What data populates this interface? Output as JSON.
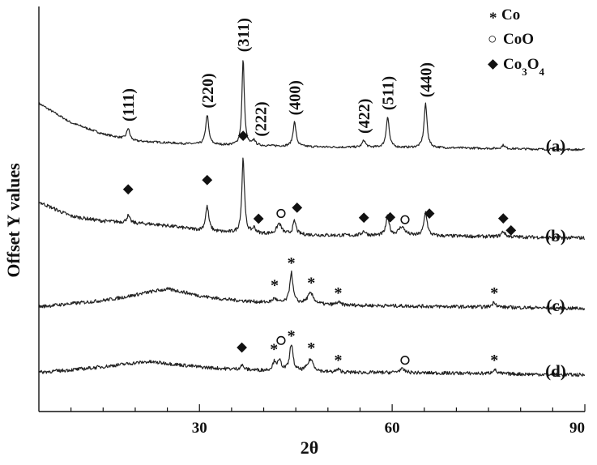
{
  "chart_data": {
    "type": "line",
    "title": "",
    "xlabel": "2θ",
    "ylabel": "Offset Y values",
    "xlim": [
      5,
      90
    ],
    "x_ticks": [
      30,
      60,
      90
    ],
    "x_tick_labels": [
      "30",
      "60",
      "90"
    ],
    "y_ticks_shown": false,
    "grid": false,
    "legend_position": "top-right",
    "legend": [
      {
        "symbol": "asterisk",
        "label": "Co",
        "marker_char": "*"
      },
      {
        "symbol": "open-circle",
        "label": "CoO",
        "marker_char": "○"
      },
      {
        "symbol": "filled-diamond",
        "label": "Co3O4",
        "formula": {
          "main": "Co",
          "sub1": "3",
          "mid": "O",
          "sub2": "4"
        }
      }
    ],
    "series": [
      {
        "name": "(a)",
        "offset": 3.0,
        "background": [
          [
            5,
            0.55
          ],
          [
            10,
            0.33
          ],
          [
            15,
            0.2
          ],
          [
            20,
            0.12
          ],
          [
            30,
            0.08
          ],
          [
            50,
            0.05
          ],
          [
            70,
            0.04
          ],
          [
            90,
            0.02
          ]
        ],
        "hump": {
          "center": 24,
          "width": 8,
          "height": 0.0
        },
        "peaks": [
          {
            "x": 18.9,
            "height": 0.13,
            "width": 0.28
          },
          {
            "x": 31.2,
            "height": 0.34,
            "width": 0.28
          },
          {
            "x": 36.8,
            "height": 0.99,
            "width": 0.22
          },
          {
            "x": 38.5,
            "height": 0.06,
            "width": 0.25
          },
          {
            "x": 44.8,
            "height": 0.28,
            "width": 0.28
          },
          {
            "x": 55.6,
            "height": 0.08,
            "width": 0.3
          },
          {
            "x": 59.3,
            "height": 0.35,
            "width": 0.28
          },
          {
            "x": 65.2,
            "height": 0.5,
            "width": 0.28
          },
          {
            "x": 77.3,
            "height": 0.04,
            "width": 0.3
          }
        ],
        "noise": 0.012
      },
      {
        "name": "(b)",
        "offset": 2.0,
        "background": [
          [
            5,
            0.45
          ],
          [
            10,
            0.28
          ],
          [
            15,
            0.2
          ],
          [
            20,
            0.15
          ],
          [
            30,
            0.1
          ],
          [
            50,
            0.07
          ],
          [
            70,
            0.06
          ],
          [
            90,
            0.04
          ]
        ],
        "hump": {
          "center": 22,
          "width": 9,
          "height": 0.06
        },
        "peaks": [
          {
            "x": 18.9,
            "height": 0.08,
            "width": 0.3
          },
          {
            "x": 31.2,
            "height": 0.28,
            "width": 0.3
          },
          {
            "x": 36.8,
            "height": 0.86,
            "width": 0.24
          },
          {
            "x": 38.5,
            "height": 0.06,
            "width": 0.3
          },
          {
            "x": 42.4,
            "height": 0.12,
            "width": 0.45
          },
          {
            "x": 44.8,
            "height": 0.15,
            "width": 0.3
          },
          {
            "x": 55.6,
            "height": 0.05,
            "width": 0.35
          },
          {
            "x": 59.3,
            "height": 0.22,
            "width": 0.3
          },
          {
            "x": 61.5,
            "height": 0.1,
            "width": 0.6
          },
          {
            "x": 65.2,
            "height": 0.27,
            "width": 0.3
          },
          {
            "x": 77.3,
            "height": 0.06,
            "width": 0.35
          }
        ],
        "noise": 0.02
      },
      {
        "name": "(c)",
        "offset": 1.0,
        "background": [
          [
            5,
            0.05
          ],
          [
            15,
            0.12
          ],
          [
            25,
            0.2
          ],
          [
            30,
            0.15
          ],
          [
            40,
            0.1
          ],
          [
            50,
            0.07
          ],
          [
            70,
            0.05
          ],
          [
            90,
            0.03
          ]
        ],
        "hump": {
          "center": 25,
          "width": 6,
          "height": 0.05
        },
        "peaks": [
          {
            "x": 41.7,
            "height": 0.05,
            "width": 0.35
          },
          {
            "x": 44.3,
            "height": 0.35,
            "width": 0.3
          },
          {
            "x": 47.3,
            "height": 0.12,
            "width": 0.6
          },
          {
            "x": 51.6,
            "height": 0.03,
            "width": 0.4
          },
          {
            "x": 75.9,
            "height": 0.06,
            "width": 0.35
          }
        ],
        "noise": 0.02
      },
      {
        "name": "(d)",
        "offset": 0.0,
        "background": [
          [
            5,
            0.05
          ],
          [
            15,
            0.1
          ],
          [
            22,
            0.14
          ],
          [
            30,
            0.1
          ],
          [
            40,
            0.07
          ],
          [
            50,
            0.05
          ],
          [
            70,
            0.04
          ],
          [
            90,
            0.02
          ]
        ],
        "hump": {
          "center": 22,
          "width": 8,
          "height": 0.03
        },
        "peaks": [
          {
            "x": 36.6,
            "height": 0.05,
            "width": 0.3
          },
          {
            "x": 41.7,
            "height": 0.1,
            "width": 0.35
          },
          {
            "x": 42.5,
            "height": 0.1,
            "width": 0.35
          },
          {
            "x": 44.3,
            "height": 0.31,
            "width": 0.3
          },
          {
            "x": 47.3,
            "height": 0.14,
            "width": 0.55
          },
          {
            "x": 51.6,
            "height": 0.03,
            "width": 0.4
          },
          {
            "x": 61.5,
            "height": 0.04,
            "width": 0.6
          },
          {
            "x": 75.9,
            "height": 0.05,
            "width": 0.35
          }
        ],
        "noise": 0.02
      }
    ],
    "hkl_labels": [
      {
        "text": "(111)",
        "x": 18.9
      },
      {
        "text": "(220)",
        "x": 31.2
      },
      {
        "text": "(311)",
        "x": 36.8
      },
      {
        "text": "(222)",
        "x": 39.5
      },
      {
        "text": "(400)",
        "x": 44.8
      },
      {
        "text": "(422)",
        "x": 55.6
      },
      {
        "text": "(511)",
        "x": 59.3
      },
      {
        "text": "(440)",
        "x": 65.2
      }
    ],
    "markers": [
      {
        "series": "(b)",
        "x": 18.9,
        "symbol": "filled-diamond",
        "above": 0.3
      },
      {
        "series": "(b)",
        "x": 31.2,
        "symbol": "filled-diamond",
        "above": 0.3
      },
      {
        "series": "(b)",
        "x": 36.8,
        "symbol": "filled-diamond",
        "above": 0.25
      },
      {
        "series": "(b)",
        "x": 39.2,
        "symbol": "filled-diamond",
        "above": 0.15
      },
      {
        "series": "(b)",
        "x": 42.7,
        "symbol": "open-circle",
        "above": 0.15
      },
      {
        "series": "(b)",
        "x": 45.2,
        "symbol": "filled-diamond",
        "above": 0.25
      },
      {
        "series": "(b)",
        "x": 55.6,
        "symbol": "filled-diamond",
        "above": 0.15
      },
      {
        "series": "(b)",
        "x": 59.7,
        "symbol": "filled-diamond",
        "above": 0.12
      },
      {
        "series": "(b)",
        "x": 62.0,
        "symbol": "open-circle",
        "above": 0.12
      },
      {
        "series": "(b)",
        "x": 65.8,
        "symbol": "filled-diamond",
        "above": 0.2
      },
      {
        "series": "(b)",
        "x": 77.3,
        "symbol": "filled-diamond",
        "above": 0.15
      },
      {
        "series": "(b)",
        "x": 78.5,
        "symbol": "filled-diamond",
        "above": 0.07
      },
      {
        "series": "(c)",
        "x": 41.7,
        "symbol": "asterisk",
        "above": 0.16
      },
      {
        "series": "(c)",
        "x": 44.3,
        "symbol": "asterisk",
        "above": 0.12
      },
      {
        "series": "(c)",
        "x": 47.4,
        "symbol": "asterisk",
        "above": 0.14
      },
      {
        "series": "(c)",
        "x": 51.6,
        "symbol": "asterisk",
        "above": 0.12
      },
      {
        "series": "(c)",
        "x": 75.9,
        "symbol": "asterisk",
        "above": 0.12
      },
      {
        "series": "(d)",
        "x": 36.6,
        "symbol": "filled-diamond",
        "above": 0.2
      },
      {
        "series": "(d)",
        "x": 41.6,
        "symbol": "asterisk",
        "above": 0.15
      },
      {
        "series": "(d)",
        "x": 42.7,
        "symbol": "open-circle",
        "above": 0.25
      },
      {
        "series": "(d)",
        "x": 44.3,
        "symbol": "asterisk",
        "above": 0.1
      },
      {
        "series": "(d)",
        "x": 47.4,
        "symbol": "asterisk",
        "above": 0.15
      },
      {
        "series": "(d)",
        "x": 51.6,
        "symbol": "asterisk",
        "above": 0.12
      },
      {
        "series": "(d)",
        "x": 62.0,
        "symbol": "open-circle",
        "above": 0.12
      },
      {
        "series": "(d)",
        "x": 75.9,
        "symbol": "asterisk",
        "above": 0.12
      }
    ]
  }
}
